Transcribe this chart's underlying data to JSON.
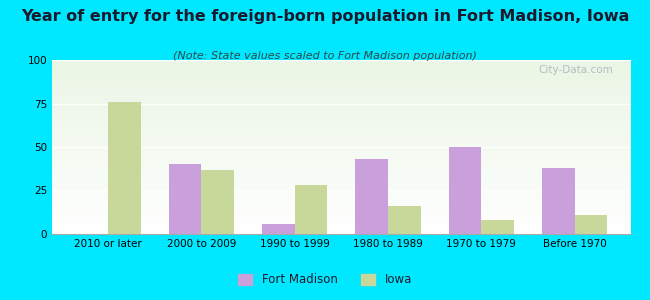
{
  "title": "Year of entry for the foreign-born population in Fort Madison, Iowa",
  "subtitle": "(Note: State values scaled to Fort Madison population)",
  "categories": [
    "2010 or later",
    "2000 to 2009",
    "1990 to 1999",
    "1980 to 1989",
    "1970 to 1979",
    "Before 1970"
  ],
  "fort_madison": [
    0,
    40,
    6,
    43,
    50,
    38
  ],
  "iowa": [
    76,
    37,
    28,
    16,
    8,
    11
  ],
  "fort_madison_color": "#c9a0dc",
  "iowa_color": "#c8d89a",
  "background_outer": "#00e8ff",
  "background_inner_top": "#e8f5e2",
  "background_inner_bottom": "#ffffff",
  "ylim": [
    0,
    100
  ],
  "yticks": [
    0,
    25,
    50,
    75,
    100
  ],
  "bar_width": 0.35,
  "title_fontsize": 11.5,
  "subtitle_fontsize": 8,
  "tick_fontsize": 7.5,
  "legend_fontsize": 8.5,
  "watermark": "City-Data.com"
}
